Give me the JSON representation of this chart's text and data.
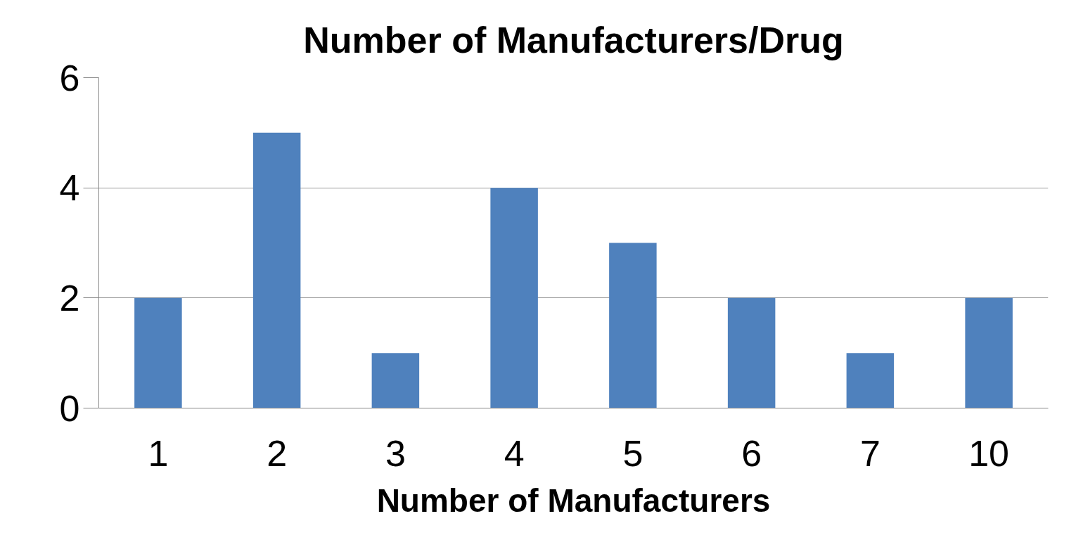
{
  "chart_data": {
    "type": "bar",
    "title": "Number of Manufacturers/Drug",
    "xlabel": "Number of Manufacturers",
    "categories": [
      "1",
      "2",
      "3",
      "4",
      "5",
      "6",
      "7",
      "10"
    ],
    "values": [
      2,
      5,
      1,
      4,
      3,
      2,
      1,
      2
    ],
    "color": "#4f81bd",
    "ylim": [
      0,
      6
    ],
    "yticks": [
      0,
      2,
      4,
      6
    ],
    "grid": "y"
  }
}
